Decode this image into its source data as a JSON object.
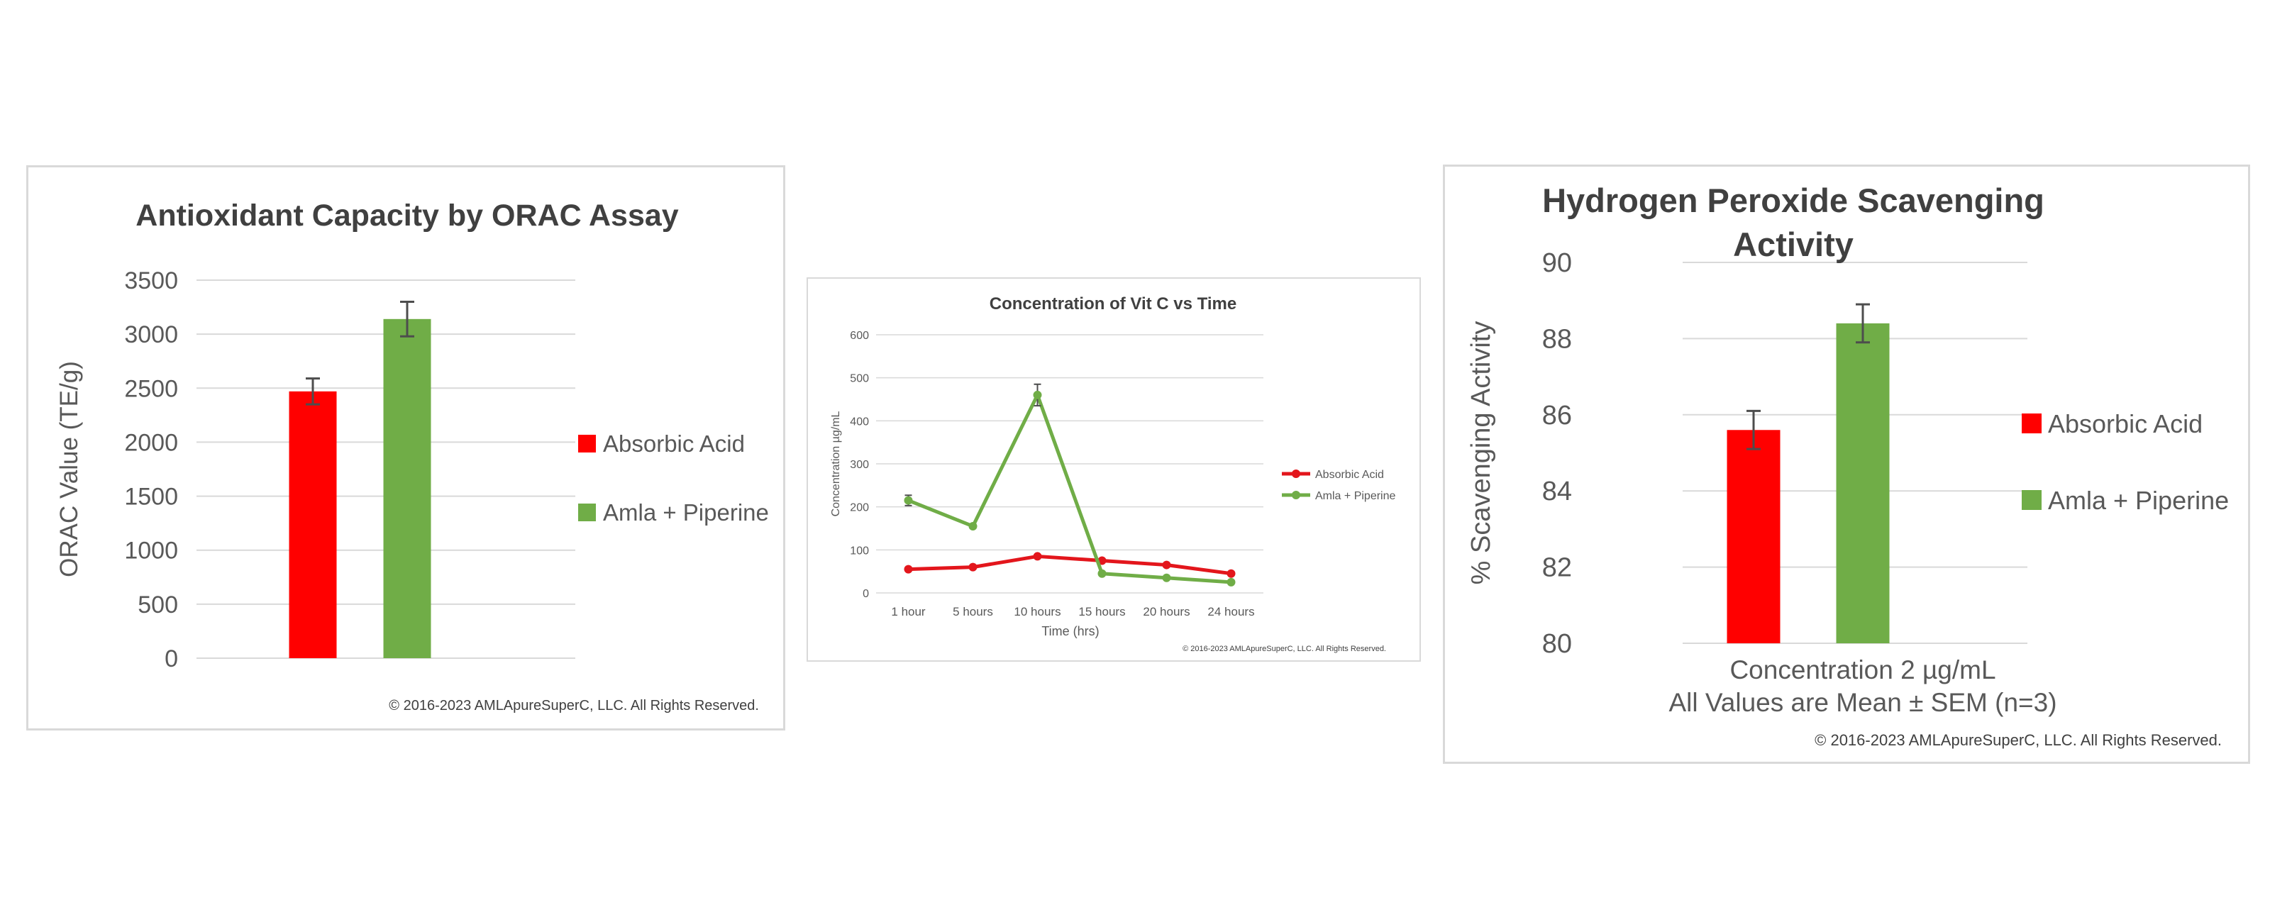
{
  "colors": {
    "red": "#ff0000",
    "red_line": "#e3161c",
    "green": "#70ad47",
    "grid": "#d9d9d9",
    "text": "#595959",
    "title": "#404040",
    "error_bar": "#4d4d4d"
  },
  "chart_data": [
    {
      "type": "bar",
      "title": "Antioxidant Capacity by ORAC Assay",
      "ylabel": "ORAC Value (TE/g)",
      "xlabel": "",
      "ylim": [
        0,
        3500
      ],
      "yticks": [
        0,
        500,
        1000,
        1500,
        2000,
        2500,
        3000,
        3500
      ],
      "grid": true,
      "legend_position": "right",
      "series": [
        {
          "name": "Absorbic Acid",
          "value": 2470,
          "error": 120,
          "color": "#ff0000"
        },
        {
          "name": "Amla + Piperine",
          "value": 3140,
          "error": 160,
          "color": "#70ad47"
        }
      ],
      "copyright": "© 2016-2023 AMLApureSuperC, LLC. All Rights Reserved."
    },
    {
      "type": "line",
      "title": "Concentration of Vit C vs Time",
      "ylabel": "Concentration µg/mL",
      "xlabel": "Time (hrs)",
      "ylim": [
        0,
        600
      ],
      "yticks": [
        0,
        100,
        200,
        300,
        400,
        500,
        600
      ],
      "categories": [
        "1 hour",
        "5 hours",
        "10 hours",
        "15 hours",
        "20 hours",
        "24 hours"
      ],
      "grid": true,
      "legend_position": "right",
      "series": [
        {
          "name": "Absorbic Acid",
          "values": [
            55,
            60,
            85,
            75,
            65,
            45
          ],
          "color": "#e3161c"
        },
        {
          "name": "Amla + Piperine",
          "values": [
            215,
            155,
            460,
            45,
            35,
            25
          ],
          "errors": [
            12,
            0,
            25,
            0,
            0,
            0
          ],
          "color": "#70ad47"
        }
      ],
      "copyright": "© 2016-2023 AMLApureSuperC, LLC. All Rights Reserved."
    },
    {
      "type": "bar",
      "title": "Hydrogen Peroxide Scavenging Activity",
      "title_lines": [
        "Hydrogen Peroxide Scavenging",
        "Activity"
      ],
      "ylabel": "% Scavenging Activity",
      "xlabel_lines": [
        "Concentration 2 µg/mL",
        "All Values are Mean ± SEM (n=3)"
      ],
      "ylim": [
        80,
        90
      ],
      "yticks": [
        80,
        82,
        84,
        86,
        88,
        90
      ],
      "grid": true,
      "legend_position": "right",
      "series": [
        {
          "name": "Absorbic Acid",
          "value": 85.6,
          "error": 0.5,
          "color": "#ff0000"
        },
        {
          "name": "Amla + Piperine",
          "value": 88.4,
          "error": 0.5,
          "color": "#70ad47"
        }
      ],
      "copyright": "© 2016-2023 AMLApureSuperC, LLC. All Rights Reserved."
    }
  ]
}
